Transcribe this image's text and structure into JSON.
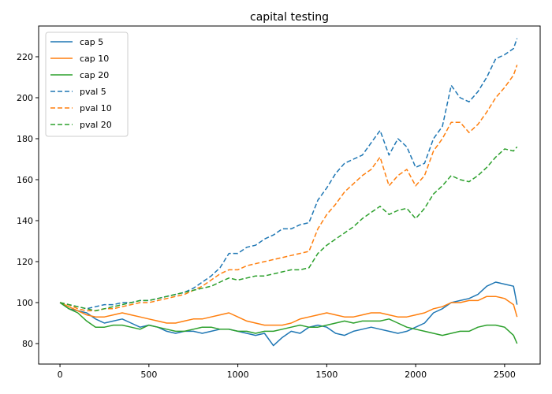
{
  "chart_data": {
    "type": "line",
    "title": "capital testing",
    "xlabel": "",
    "ylabel": "",
    "xlim": [
      -120,
      2700
    ],
    "ylim": [
      70,
      235
    ],
    "xticks": [
      0,
      500,
      1000,
      1500,
      2000,
      2500
    ],
    "yticks": [
      80,
      100,
      120,
      140,
      160,
      180,
      200,
      220
    ],
    "legend_position": "top-left",
    "series": [
      {
        "name": "cap 5",
        "style": "solid",
        "color": "#1f77b4",
        "x": [
          0,
          50,
          100,
          150,
          200,
          250,
          300,
          350,
          400,
          450,
          500,
          550,
          600,
          650,
          700,
          750,
          800,
          850,
          900,
          950,
          1000,
          1050,
          1100,
          1150,
          1200,
          1250,
          1300,
          1350,
          1400,
          1450,
          1500,
          1550,
          1600,
          1650,
          1700,
          1750,
          1800,
          1850,
          1900,
          1950,
          2000,
          2050,
          2100,
          2150,
          2200,
          2250,
          2300,
          2350,
          2400,
          2450,
          2500,
          2550,
          2570
        ],
        "values": [
          100,
          97,
          96,
          95,
          92,
          90,
          91,
          92,
          90,
          88,
          89,
          88,
          86,
          85,
          86,
          86,
          85,
          86,
          87,
          87,
          86,
          85,
          84,
          85,
          79,
          83,
          86,
          85,
          88,
          89,
          88,
          85,
          84,
          86,
          87,
          88,
          87,
          86,
          85,
          86,
          88,
          90,
          95,
          97,
          100,
          101,
          102,
          104,
          108,
          110,
          109,
          108,
          99
        ]
      },
      {
        "name": "cap 10",
        "style": "solid",
        "color": "#ff7f0e",
        "x": [
          0,
          50,
          100,
          150,
          200,
          250,
          300,
          350,
          400,
          450,
          500,
          550,
          600,
          650,
          700,
          750,
          800,
          850,
          900,
          950,
          1000,
          1050,
          1100,
          1150,
          1200,
          1250,
          1300,
          1350,
          1400,
          1450,
          1500,
          1550,
          1600,
          1650,
          1700,
          1750,
          1800,
          1850,
          1900,
          1950,
          2000,
          2050,
          2100,
          2150,
          2200,
          2250,
          2300,
          2350,
          2400,
          2450,
          2500,
          2550,
          2570
        ],
        "values": [
          100,
          98,
          96,
          94,
          93,
          93,
          94,
          95,
          94,
          93,
          92,
          91,
          90,
          90,
          91,
          92,
          92,
          93,
          94,
          95,
          93,
          91,
          90,
          89,
          89,
          89,
          90,
          92,
          93,
          94,
          95,
          94,
          93,
          93,
          94,
          95,
          95,
          94,
          93,
          93,
          94,
          95,
          97,
          98,
          100,
          100,
          101,
          101,
          103,
          103,
          102,
          99,
          93
        ]
      },
      {
        "name": "cap 20",
        "style": "solid",
        "color": "#2ca02c",
        "x": [
          0,
          50,
          100,
          150,
          200,
          250,
          300,
          350,
          400,
          450,
          500,
          550,
          600,
          650,
          700,
          750,
          800,
          850,
          900,
          950,
          1000,
          1050,
          1100,
          1150,
          1200,
          1250,
          1300,
          1350,
          1400,
          1450,
          1500,
          1550,
          1600,
          1650,
          1700,
          1750,
          1800,
          1850,
          1900,
          1950,
          2000,
          2050,
          2100,
          2150,
          2200,
          2250,
          2300,
          2350,
          2400,
          2450,
          2500,
          2550,
          2570
        ],
        "values": [
          100,
          97,
          95,
          91,
          88,
          88,
          89,
          89,
          88,
          87,
          89,
          88,
          87,
          86,
          86,
          87,
          88,
          88,
          87,
          87,
          86,
          86,
          85,
          86,
          86,
          87,
          88,
          89,
          88,
          88,
          89,
          90,
          91,
          90,
          91,
          91,
          91,
          92,
          90,
          88,
          87,
          86,
          85,
          84,
          85,
          86,
          86,
          88,
          89,
          89,
          88,
          84,
          80
        ]
      },
      {
        "name": "pval 5",
        "style": "dashed",
        "color": "#1f77b4",
        "x": [
          0,
          50,
          100,
          150,
          200,
          250,
          300,
          350,
          400,
          450,
          500,
          550,
          600,
          650,
          700,
          750,
          800,
          850,
          900,
          950,
          1000,
          1050,
          1100,
          1150,
          1200,
          1250,
          1300,
          1350,
          1400,
          1450,
          1500,
          1550,
          1600,
          1650,
          1700,
          1750,
          1800,
          1850,
          1900,
          1950,
          2000,
          2050,
          2100,
          2150,
          2200,
          2250,
          2300,
          2350,
          2400,
          2450,
          2500,
          2550,
          2570
        ],
        "values": [
          100,
          99,
          98,
          97,
          98,
          99,
          99,
          100,
          100,
          101,
          101,
          102,
          103,
          104,
          105,
          107,
          110,
          113,
          117,
          124,
          124,
          127,
          128,
          131,
          133,
          136,
          136,
          138,
          139,
          150,
          156,
          163,
          168,
          170,
          172,
          178,
          184,
          172,
          180,
          176,
          166,
          168,
          180,
          186,
          206,
          200,
          198,
          203,
          210,
          219,
          221,
          224,
          229
        ]
      },
      {
        "name": "pval 10",
        "style": "dashed",
        "color": "#ff7f0e",
        "x": [
          0,
          50,
          100,
          150,
          200,
          250,
          300,
          350,
          400,
          450,
          500,
          550,
          600,
          650,
          700,
          750,
          800,
          850,
          900,
          950,
          1000,
          1050,
          1100,
          1150,
          1200,
          1250,
          1300,
          1350,
          1400,
          1450,
          1500,
          1550,
          1600,
          1650,
          1700,
          1750,
          1800,
          1850,
          1900,
          1950,
          2000,
          2050,
          2100,
          2150,
          2200,
          2250,
          2300,
          2350,
          2400,
          2450,
          2500,
          2550,
          2570
        ],
        "values": [
          100,
          99,
          97,
          96,
          96,
          97,
          97,
          98,
          99,
          100,
          100,
          101,
          102,
          103,
          104,
          106,
          108,
          111,
          114,
          116,
          116,
          118,
          119,
          120,
          121,
          122,
          123,
          124,
          125,
          136,
          143,
          148,
          154,
          158,
          162,
          165,
          171,
          157,
          162,
          165,
          157,
          162,
          174,
          180,
          188,
          188,
          183,
          187,
          193,
          200,
          205,
          211,
          216
        ]
      },
      {
        "name": "pval 20",
        "style": "dashed",
        "color": "#2ca02c",
        "x": [
          0,
          50,
          100,
          150,
          200,
          250,
          300,
          350,
          400,
          450,
          500,
          550,
          600,
          650,
          700,
          750,
          800,
          850,
          900,
          950,
          1000,
          1050,
          1100,
          1150,
          1200,
          1250,
          1300,
          1350,
          1400,
          1450,
          1500,
          1550,
          1600,
          1650,
          1700,
          1750,
          1800,
          1850,
          1900,
          1950,
          2000,
          2050,
          2100,
          2150,
          2200,
          2250,
          2300,
          2350,
          2400,
          2450,
          2500,
          2550,
          2570
        ],
        "values": [
          100,
          99,
          98,
          97,
          96,
          97,
          98,
          99,
          100,
          101,
          101,
          102,
          103,
          104,
          105,
          106,
          107,
          108,
          110,
          112,
          111,
          112,
          113,
          113,
          114,
          115,
          116,
          116,
          117,
          124,
          128,
          131,
          134,
          137,
          141,
          144,
          147,
          143,
          145,
          146,
          141,
          146,
          153,
          157,
          162,
          160,
          159,
          162,
          166,
          171,
          175,
          174,
          176
        ]
      }
    ]
  }
}
